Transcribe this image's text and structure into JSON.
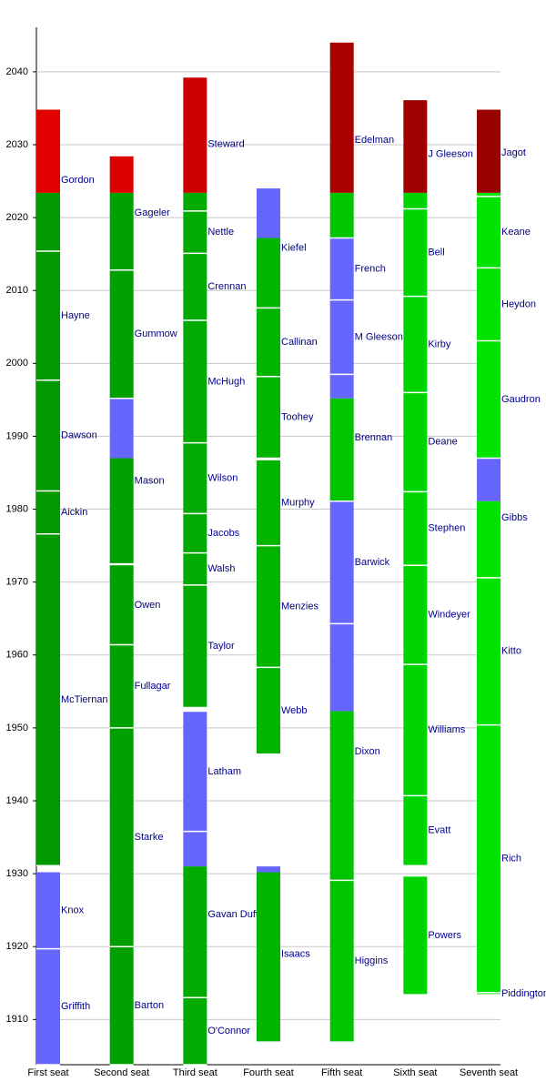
{
  "chart_data": {
    "type": "timeline",
    "ylim": [
      1903.8,
      2046.1
    ],
    "yticks": [
      1910,
      1920,
      1930,
      1940,
      1950,
      1960,
      1970,
      1980,
      1990,
      2000,
      2010,
      2020,
      2030,
      2040
    ],
    "grid": true,
    "seats": [
      {
        "name": "First seat",
        "justices": [
          {
            "name": "Griffith",
            "periods": [
              {
                "start": 1903.8,
                "end": 1919.7,
                "color": "#6666ff"
              }
            ]
          },
          {
            "name": "Knox",
            "periods": [
              {
                "start": 1919.7,
                "end": 1930.2,
                "color": "#6666ff"
              }
            ]
          },
          {
            "name": "McTiernan",
            "periods": [
              {
                "start": 1931.1,
                "end": 1976.6,
                "color": "#009900"
              }
            ]
          },
          {
            "name": "Aickin",
            "periods": [
              {
                "start": 1976.6,
                "end": 1982.5,
                "color": "#009900"
              }
            ]
          },
          {
            "name": "Dawson",
            "periods": [
              {
                "start": 1982.5,
                "end": 1997.7,
                "color": "#009900"
              }
            ]
          },
          {
            "name": "Hayne",
            "periods": [
              {
                "start": 1997.7,
                "end": 2015.4,
                "color": "#009900"
              }
            ]
          },
          {
            "name": "Gordon",
            "periods": [
              {
                "start": 2015.4,
                "end": 2023.4,
                "color": "#009900"
              },
              {
                "start": 2023.4,
                "end": 2034.8,
                "color": "#e00000"
              }
            ]
          }
        ]
      },
      {
        "name": "Second seat",
        "justices": [
          {
            "name": "Barton",
            "periods": [
              {
                "start": 1903.8,
                "end": 1920.0,
                "color": "#00a000"
              }
            ]
          },
          {
            "name": "Starke",
            "periods": [
              {
                "start": 1920.0,
                "end": 1950.0,
                "color": "#00a000"
              }
            ]
          },
          {
            "name": "Fullagar",
            "periods": [
              {
                "start": 1950.0,
                "end": 1961.4,
                "color": "#00a000"
              }
            ]
          },
          {
            "name": "Owen",
            "periods": [
              {
                "start": 1961.4,
                "end": 1972.3,
                "color": "#00a000"
              }
            ]
          },
          {
            "name": "Mason",
            "periods": [
              {
                "start": 1972.5,
                "end": 1987.0,
                "color": "#00a000"
              },
              {
                "start": 1987.0,
                "end": 1995.2,
                "color": "#6666ff"
              }
            ]
          },
          {
            "name": "Gummow",
            "periods": [
              {
                "start": 1995.2,
                "end": 2012.8,
                "color": "#00a000"
              }
            ]
          },
          {
            "name": "Gageler",
            "periods": [
              {
                "start": 2012.8,
                "end": 2023.4,
                "color": "#00a000"
              },
              {
                "start": 2023.4,
                "end": 2028.4,
                "color": "#dd0000"
              }
            ]
          }
        ]
      },
      {
        "name": "Third seat",
        "justices": [
          {
            "name": "O'Connor",
            "periods": [
              {
                "start": 1903.8,
                "end": 1913.0,
                "color": "#00aa00"
              }
            ]
          },
          {
            "name": "Gavan Duffy",
            "periods": [
              {
                "start": 1913.0,
                "end": 1931.0,
                "color": "#00aa00"
              },
              {
                "start": 1931.0,
                "end": 1935.8,
                "color": "#6666ff"
              }
            ]
          },
          {
            "name": "Latham",
            "periods": [
              {
                "start": 1935.8,
                "end": 1952.2,
                "color": "#6666ff"
              }
            ]
          },
          {
            "name": "Taylor",
            "periods": [
              {
                "start": 1952.8,
                "end": 1969.6,
                "color": "#00aa00"
              }
            ]
          },
          {
            "name": "Walsh",
            "periods": [
              {
                "start": 1969.6,
                "end": 1974.0,
                "color": "#00aa00"
              }
            ]
          },
          {
            "name": "Jacobs",
            "periods": [
              {
                "start": 1974.0,
                "end": 1979.4,
                "color": "#00aa00"
              }
            ]
          },
          {
            "name": "Wilson",
            "periods": [
              {
                "start": 1979.4,
                "end": 1989.1,
                "color": "#00aa00"
              }
            ]
          },
          {
            "name": "McHugh",
            "periods": [
              {
                "start": 1989.1,
                "end": 2005.9,
                "color": "#00aa00"
              }
            ]
          },
          {
            "name": "Crennan",
            "periods": [
              {
                "start": 2005.9,
                "end": 2015.1,
                "color": "#00aa00"
              }
            ]
          },
          {
            "name": "Nettle",
            "periods": [
              {
                "start": 2015.1,
                "end": 2020.9,
                "color": "#00aa00"
              }
            ]
          },
          {
            "name": "Steward",
            "periods": [
              {
                "start": 2020.9,
                "end": 2023.4,
                "color": "#00aa00"
              },
              {
                "start": 2023.4,
                "end": 2039.2,
                "color": "#cc0000"
              }
            ]
          }
        ]
      },
      {
        "name": "Fourth seat",
        "justices": [
          {
            "name": "Isaacs",
            "periods": [
              {
                "start": 1906.9,
                "end": 1930.2,
                "color": "#00b400"
              },
              {
                "start": 1930.2,
                "end": 1931.0,
                "color": "#6666ff"
              }
            ]
          },
          {
            "name": "Webb",
            "periods": [
              {
                "start": 1946.4,
                "end": 1958.3,
                "color": "#00b400"
              }
            ]
          },
          {
            "name": "Menzies",
            "periods": [
              {
                "start": 1958.3,
                "end": 1975.0,
                "color": "#00b400"
              }
            ]
          },
          {
            "name": "Murphy",
            "periods": [
              {
                "start": 1975.0,
                "end": 1986.7,
                "color": "#00b400"
              }
            ]
          },
          {
            "name": "Toohey",
            "periods": [
              {
                "start": 1987.0,
                "end": 1998.2,
                "color": "#00b400"
              }
            ]
          },
          {
            "name": "Callinan",
            "periods": [
              {
                "start": 1998.2,
                "end": 2007.6,
                "color": "#00b400"
              }
            ]
          },
          {
            "name": "Kiefel",
            "periods": [
              {
                "start": 2007.6,
                "end": 2017.2,
                "color": "#00b400"
              },
              {
                "start": 2017.2,
                "end": 2024.0,
                "color": "#6666ff"
              }
            ]
          }
        ]
      },
      {
        "name": "Fifth seat",
        "justices": [
          {
            "name": "Higgins",
            "periods": [
              {
                "start": 1906.9,
                "end": 1929.1,
                "color": "#00c400"
              }
            ]
          },
          {
            "name": "Dixon",
            "periods": [
              {
                "start": 1929.1,
                "end": 1952.3,
                "color": "#00c400"
              },
              {
                "start": 1952.3,
                "end": 1964.3,
                "color": "#6666ff"
              }
            ]
          },
          {
            "name": "Barwick",
            "periods": [
              {
                "start": 1964.3,
                "end": 1981.1,
                "color": "#6666ff"
              }
            ]
          },
          {
            "name": "Brennan",
            "periods": [
              {
                "start": 1981.1,
                "end": 1995.2,
                "color": "#00c400"
              },
              {
                "start": 1995.2,
                "end": 1998.5,
                "color": "#6666ff"
              }
            ]
          },
          {
            "name": "M Gleeson",
            "periods": [
              {
                "start": 1998.5,
                "end": 2008.7,
                "color": "#6666ff"
              }
            ]
          },
          {
            "name": "French",
            "periods": [
              {
                "start": 2008.7,
                "end": 2017.2,
                "color": "#6666ff"
              }
            ]
          },
          {
            "name": "Edelman",
            "periods": [
              {
                "start": 2017.2,
                "end": 2023.4,
                "color": "#00c400"
              },
              {
                "start": 2023.4,
                "end": 2044.0,
                "color": "#aa0000"
              }
            ]
          }
        ]
      },
      {
        "name": "Sixth seat",
        "justices": [
          {
            "name": "Powers",
            "periods": [
              {
                "start": 1913.4,
                "end": 1929.6,
                "color": "#00d400"
              }
            ]
          },
          {
            "name": "Evatt",
            "periods": [
              {
                "start": 1931.1,
                "end": 1940.7,
                "color": "#00d400"
              }
            ]
          },
          {
            "name": "Williams",
            "periods": [
              {
                "start": 1940.7,
                "end": 1958.7,
                "color": "#00d400"
              }
            ]
          },
          {
            "name": "Windeyer",
            "periods": [
              {
                "start": 1958.7,
                "end": 1972.3,
                "color": "#00d400"
              }
            ]
          },
          {
            "name": "Stephen",
            "periods": [
              {
                "start": 1972.3,
                "end": 1982.4,
                "color": "#00d400"
              }
            ]
          },
          {
            "name": "Deane",
            "periods": [
              {
                "start": 1982.4,
                "end": 1996.0,
                "color": "#00d400"
              }
            ]
          },
          {
            "name": "Kirby",
            "periods": [
              {
                "start": 1996.0,
                "end": 2009.2,
                "color": "#00d400"
              }
            ]
          },
          {
            "name": "Bell",
            "periods": [
              {
                "start": 2009.2,
                "end": 2021.2,
                "color": "#00d400"
              }
            ]
          },
          {
            "name": "J Gleeson",
            "periods": [
              {
                "start": 2021.2,
                "end": 2023.4,
                "color": "#00d400"
              },
              {
                "start": 2023.4,
                "end": 2036.1,
                "color": "#a00000"
              }
            ]
          }
        ]
      },
      {
        "name": "Seventh seat",
        "justices": [
          {
            "name": "Piddington",
            "periods": [
              {
                "start": 1913.4,
                "end": 1913.7,
                "color": "#00e400"
              }
            ]
          },
          {
            "name": "Rich",
            "periods": [
              {
                "start": 1913.7,
                "end": 1950.4,
                "color": "#00e400"
              }
            ]
          },
          {
            "name": "Kitto",
            "periods": [
              {
                "start": 1950.4,
                "end": 1970.6,
                "color": "#00e400"
              }
            ]
          },
          {
            "name": "Gibbs",
            "periods": [
              {
                "start": 1970.6,
                "end": 1981.1,
                "color": "#00e400"
              },
              {
                "start": 1981.1,
                "end": 1987.0,
                "color": "#6666ff"
              }
            ]
          },
          {
            "name": "Gaudron",
            "periods": [
              {
                "start": 1987.0,
                "end": 2003.1,
                "color": "#00e400"
              }
            ]
          },
          {
            "name": "Heydon",
            "periods": [
              {
                "start": 2003.1,
                "end": 2013.1,
                "color": "#00e400"
              }
            ]
          },
          {
            "name": "Keane",
            "periods": [
              {
                "start": 2013.1,
                "end": 2022.9,
                "color": "#00e400"
              }
            ]
          },
          {
            "name": "Jagot",
            "periods": [
              {
                "start": 2022.9,
                "end": 2023.4,
                "color": "#00e400"
              },
              {
                "start": 2023.4,
                "end": 2034.8,
                "color": "#990000"
              }
            ]
          }
        ]
      }
    ]
  }
}
